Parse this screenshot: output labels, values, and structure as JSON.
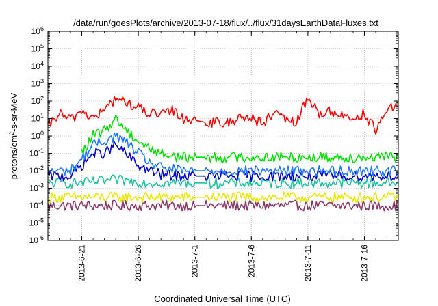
{
  "chart_data": {
    "type": "line",
    "title": "/data/run/goesPlots/archive/2013-07-18/flux/../flux/31daysEarthDataFluxes.txt",
    "xlabel": "Coordinated Universal Time (UTC)",
    "ylabel": "protons/cm2-s-sr-MeV",
    "ylabel_parts": {
      "pre": "protons/cm",
      "sup": "2",
      "post": "-s-sr-MeV"
    },
    "y_scale": "log",
    "ylim": [
      1e-06,
      1000000.0
    ],
    "y_ticks": [
      {
        "exp": "-6",
        "value": 1e-06
      },
      {
        "exp": "-5",
        "value": 1e-05
      },
      {
        "exp": "-4",
        "value": 0.0001
      },
      {
        "exp": "-3",
        "value": 0.001
      },
      {
        "exp": "-2",
        "value": 0.01
      },
      {
        "exp": "-1",
        "value": 0.1
      },
      {
        "exp": "0",
        "value": 1
      },
      {
        "exp": "1",
        "value": 10
      },
      {
        "exp": "2",
        "value": 100
      },
      {
        "exp": "3",
        "value": 1000.0
      },
      {
        "exp": "4",
        "value": 10000.0
      },
      {
        "exp": "5",
        "value": 100000.0
      },
      {
        "exp": "6",
        "value": 1000000.0
      }
    ],
    "xlim": [
      "2013-06-18",
      "2013-07-19"
    ],
    "x_ticks": [
      "2013-6-21",
      "2013-6-26",
      "2013-7-1",
      "2013-7-6",
      "2013-7-11",
      "2013-7-16"
    ],
    "grid": true,
    "data_gap": [
      "2013-07-01",
      "2013-07-02"
    ],
    "series": [
      {
        "color": "#ff0000",
        "x": [
          "2013-06-18",
          "2013-06-19",
          "2013-06-20",
          "2013-06-21",
          "2013-06-22",
          "2013-06-23",
          "2013-06-24",
          "2013-06-25",
          "2013-06-26",
          "2013-06-27",
          "2013-06-28",
          "2013-06-29",
          "2013-06-30",
          "2013-07-01",
          "2013-07-02",
          "2013-07-03",
          "2013-07-04",
          "2013-07-05",
          "2013-07-06",
          "2013-07-07",
          "2013-07-08",
          "2013-07-09",
          "2013-07-10",
          "2013-07-11",
          "2013-07-12",
          "2013-07-13",
          "2013-07-14",
          "2013-07-15",
          "2013-07-16",
          "2013-07-17",
          "2013-07-18",
          "2013-07-19"
        ],
        "y": [
          3,
          20,
          8,
          30,
          10,
          30,
          150,
          80,
          40,
          20,
          15,
          30,
          10,
          8,
          6,
          6,
          5,
          15,
          10,
          5,
          20,
          8,
          6,
          150,
          20,
          25,
          15,
          10,
          20,
          2,
          30,
          50
        ]
      },
      {
        "color": "#00e000",
        "x": [
          "2013-06-21",
          "2013-06-22",
          "2013-06-23",
          "2013-06-24",
          "2013-06-25",
          "2013-06-26",
          "2013-06-27",
          "2013-06-28",
          "2013-06-29",
          "2013-06-30",
          "2013-07-01",
          "2013-07-02",
          "2013-07-05",
          "2013-07-10",
          "2013-07-15",
          "2013-07-19"
        ],
        "y": [
          0.1,
          1,
          2,
          10,
          2,
          0.5,
          0.2,
          0.1,
          0.07,
          0.06,
          0.06,
          0.06,
          0.06,
          0.06,
          0.06,
          0.06
        ]
      },
      {
        "color": "#1e78ff",
        "x": [
          "2013-06-18",
          "2013-06-20",
          "2013-06-21",
          "2013-06-22",
          "2013-06-23",
          "2013-06-24",
          "2013-06-25",
          "2013-06-26",
          "2013-06-27",
          "2013-06-28",
          "2013-06-30",
          "2013-07-01",
          "2013-07-02",
          "2013-07-05",
          "2013-07-10",
          "2013-07-15",
          "2013-07-19"
        ],
        "y": [
          0.01,
          0.01,
          0.05,
          0.3,
          0.5,
          1,
          0.4,
          0.1,
          0.03,
          0.015,
          0.01,
          0.01,
          0.01,
          0.01,
          0.01,
          0.01,
          0.01
        ]
      },
      {
        "color": "#0000cc",
        "x": [
          "2013-06-18",
          "2013-06-20",
          "2013-06-21",
          "2013-06-22",
          "2013-06-23",
          "2013-06-24",
          "2013-06-25",
          "2013-06-26",
          "2013-06-27",
          "2013-06-28",
          "2013-06-30",
          "2013-07-01",
          "2013-07-02",
          "2013-07-05",
          "2013-07-10",
          "2013-07-15",
          "2013-07-19"
        ],
        "y": [
          0.005,
          0.005,
          0.02,
          0.1,
          0.1,
          0.3,
          0.08,
          0.02,
          0.01,
          0.006,
          0.005,
          0.005,
          0.005,
          0.005,
          0.005,
          0.005,
          0.005
        ]
      },
      {
        "color": "#20c0a0",
        "x": [
          "2013-06-18",
          "2013-06-21",
          "2013-06-24",
          "2013-06-27",
          "2013-06-30",
          "2013-07-01",
          "2013-07-02",
          "2013-07-05",
          "2013-07-10",
          "2013-07-15",
          "2013-07-19"
        ],
        "y": [
          0.002,
          0.002,
          0.003,
          0.002,
          0.002,
          0.002,
          0.002,
          0.002,
          0.002,
          0.002,
          0.002
        ]
      },
      {
        "color": "#e8e800",
        "x": [
          "2013-06-18",
          "2013-06-21",
          "2013-06-24",
          "2013-06-27",
          "2013-06-30",
          "2013-07-01",
          "2013-07-02",
          "2013-07-05",
          "2013-07-10",
          "2013-07-15",
          "2013-07-19"
        ],
        "y": [
          0.0003,
          0.0003,
          0.0003,
          0.0003,
          0.0003,
          0.0003,
          0.0003,
          0.0003,
          0.0003,
          0.0003,
          0.0003
        ]
      },
      {
        "color": "#8b3868",
        "x": [
          "2013-06-18",
          "2013-06-21",
          "2013-06-24",
          "2013-06-27",
          "2013-06-30",
          "2013-07-01",
          "2013-07-02",
          "2013-07-05",
          "2013-07-10",
          "2013-07-15",
          "2013-07-19"
        ],
        "y": [
          0.0001,
          0.0001,
          0.0001,
          0.0001,
          0.0001,
          0.0001,
          0.0001,
          0.0001,
          0.0001,
          0.0001,
          0.0001
        ]
      }
    ]
  }
}
